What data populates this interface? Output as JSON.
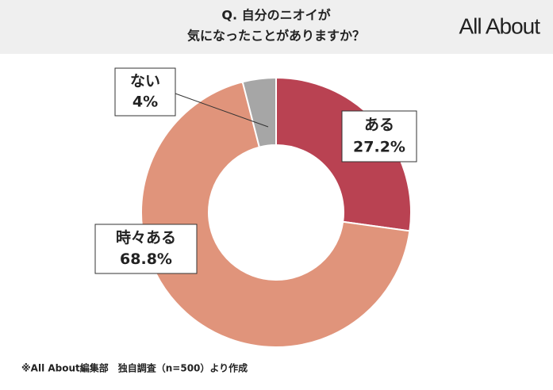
{
  "chart_data": {
    "type": "donut",
    "title": [
      "Q. 自分のニオイが",
      "気になったことがありますか？"
    ],
    "logo": "All About",
    "categories": [
      "ある",
      "時々ある",
      "ない"
    ],
    "values": [
      27.2,
      68.8,
      4
    ],
    "value_labels": [
      "27.2%",
      "68.8%",
      "4%"
    ],
    "colors": [
      "#b94252",
      "#e0947b",
      "#a6a6a6"
    ],
    "source": "※All About編集部　独自調査（n=500）より作成"
  }
}
